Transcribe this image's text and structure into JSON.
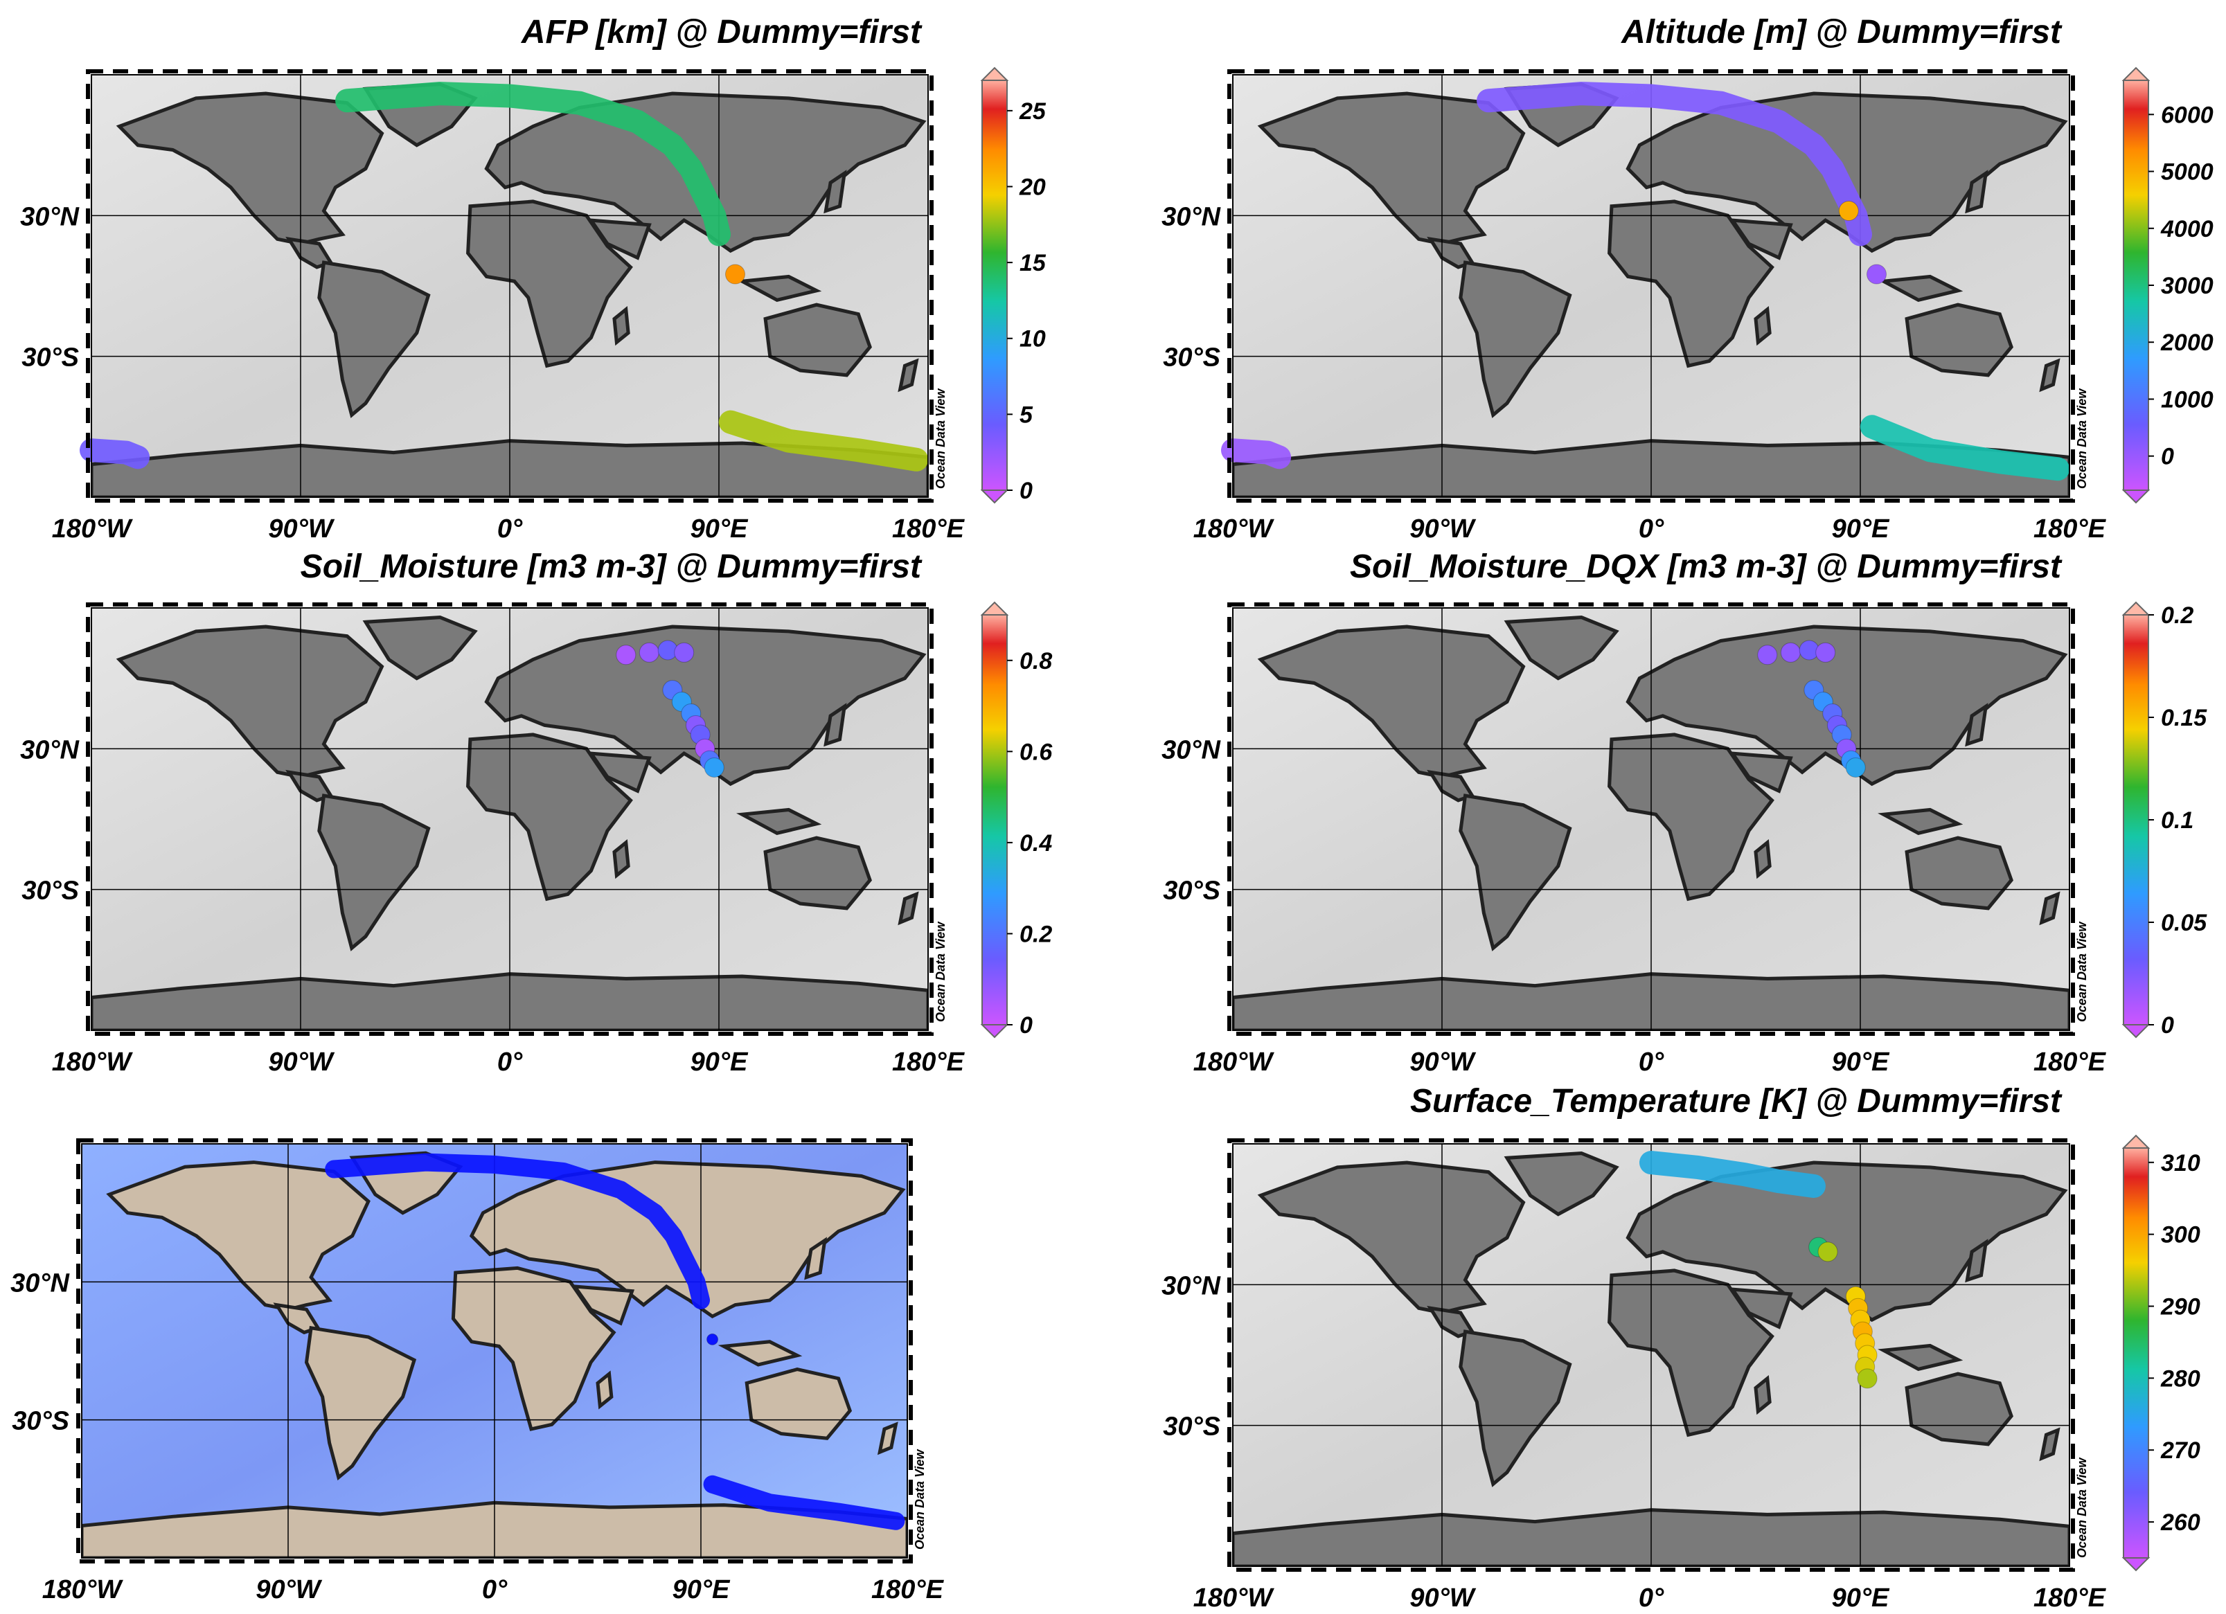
{
  "chart_data": [
    {
      "type": "scatter",
      "title": "AFP [km] @ Dummy=first",
      "x_ticks": [
        "180°W",
        "90°W",
        "0°",
        "90°E",
        "180°E"
      ],
      "y_ticks": [
        "30°N",
        "30°S"
      ],
      "colorbar": {
        "ticks": [
          "0",
          "5",
          "10",
          "15",
          "20",
          "25"
        ],
        "tick_values": [
          0,
          5,
          10,
          15,
          20,
          25
        ],
        "range": [
          0,
          27
        ]
      },
      "watermark": "Ocean Data View",
      "tracks": [
        {
          "points": [
            [
              -70,
              79
            ],
            [
              -30,
              82
            ],
            [
              0,
              81
            ],
            [
              30,
              78
            ],
            [
              55,
              70
            ],
            [
              70,
              60
            ],
            [
              78,
              50
            ],
            [
              83,
              40
            ],
            [
              88,
              30
            ],
            [
              90,
              22
            ]
          ],
          "value": 14
        },
        {
          "points": [
            [
              95,
              -58
            ],
            [
              120,
              -66
            ],
            [
              150,
              -70
            ],
            [
              175,
              -74
            ]
          ],
          "value": 18
        },
        {
          "points": [
            [
              -180,
              -70
            ],
            [
              -165,
              -71
            ],
            [
              -160,
              -73
            ]
          ],
          "value": 4
        }
      ],
      "points": [
        {
          "lon": 97,
          "lat": 5,
          "value": 22
        }
      ]
    },
    {
      "type": "scatter",
      "title": "Altitude [m] @ Dummy=first",
      "x_ticks": [
        "180°W",
        "90°W",
        "0°",
        "90°E",
        "180°E"
      ],
      "y_ticks": [
        "30°N",
        "30°S"
      ],
      "colorbar": {
        "ticks": [
          "0",
          "1000",
          "2000",
          "3000",
          "4000",
          "5000",
          "6000"
        ],
        "tick_values": [
          0,
          1000,
          2000,
          3000,
          4000,
          5000,
          6000
        ],
        "range": [
          -600,
          6600
        ]
      },
      "watermark": "Ocean Data View",
      "tracks": [
        {
          "points": [
            [
              -70,
              79
            ],
            [
              -30,
              82
            ],
            [
              0,
              81
            ],
            [
              30,
              78
            ],
            [
              55,
              70
            ],
            [
              70,
              60
            ],
            [
              78,
              50
            ],
            [
              83,
              40
            ],
            [
              88,
              30
            ],
            [
              90,
              22
            ]
          ],
          "value": 300
        },
        {
          "points": [
            [
              95,
              -60
            ],
            [
              120,
              -70
            ],
            [
              150,
              -75
            ],
            [
              175,
              -78
            ]
          ],
          "value": 2600
        },
        {
          "points": [
            [
              -180,
              -70
            ],
            [
              -165,
              -71
            ],
            [
              -160,
              -73
            ]
          ],
          "value": 0
        }
      ],
      "points": [
        {
          "lon": 97,
          "lat": 5,
          "value": 0
        },
        {
          "lon": 85,
          "lat": 32,
          "value": 5000
        }
      ]
    },
    {
      "type": "scatter",
      "title": "Soil_Moisture [m3 m-3] @ Dummy=first",
      "x_ticks": [
        "180°W",
        "90°W",
        "0°",
        "90°E",
        "180°E"
      ],
      "y_ticks": [
        "30°N",
        "30°S"
      ],
      "colorbar": {
        "ticks": [
          "0",
          "0.2",
          "0.4",
          "0.6",
          "0.8"
        ],
        "tick_values": [
          0,
          0.2,
          0.4,
          0.6,
          0.8
        ],
        "range": [
          0,
          0.9
        ]
      },
      "watermark": "Ocean Data View",
      "points": [
        {
          "lon": 50,
          "lat": 70,
          "value": 0.05
        },
        {
          "lon": 60,
          "lat": 71,
          "value": 0.08
        },
        {
          "lon": 68,
          "lat": 72,
          "value": 0.15
        },
        {
          "lon": 75,
          "lat": 71,
          "value": 0.1
        },
        {
          "lon": 70,
          "lat": 55,
          "value": 0.2
        },
        {
          "lon": 74,
          "lat": 50,
          "value": 0.3
        },
        {
          "lon": 78,
          "lat": 45,
          "value": 0.25
        },
        {
          "lon": 80,
          "lat": 40,
          "value": 0.1
        },
        {
          "lon": 82,
          "lat": 36,
          "value": 0.15
        },
        {
          "lon": 84,
          "lat": 30,
          "value": 0.05
        },
        {
          "lon": 86,
          "lat": 25,
          "value": 0.2
        },
        {
          "lon": 88,
          "lat": 22,
          "value": 0.3
        }
      ]
    },
    {
      "type": "scatter",
      "title": "Soil_Moisture_DQX [m3 m-3] @ Dummy=first",
      "x_ticks": [
        "180°W",
        "90°W",
        "0°",
        "90°E",
        "180°E"
      ],
      "y_ticks": [
        "30°N",
        "30°S"
      ],
      "colorbar": {
        "ticks": [
          "0",
          "0.05",
          "0.1",
          "0.15",
          "0.2"
        ],
        "tick_values": [
          0,
          0.05,
          0.1,
          0.15,
          0.2
        ],
        "range": [
          0,
          0.2
        ]
      },
      "watermark": "Ocean Data View",
      "points": [
        {
          "lon": 50,
          "lat": 70,
          "value": 0.02
        },
        {
          "lon": 60,
          "lat": 71,
          "value": 0.02
        },
        {
          "lon": 68,
          "lat": 72,
          "value": 0.03
        },
        {
          "lon": 75,
          "lat": 71,
          "value": 0.02
        },
        {
          "lon": 70,
          "lat": 55,
          "value": 0.05
        },
        {
          "lon": 74,
          "lat": 50,
          "value": 0.06
        },
        {
          "lon": 78,
          "lat": 45,
          "value": 0.04
        },
        {
          "lon": 80,
          "lat": 40,
          "value": 0.03
        },
        {
          "lon": 82,
          "lat": 36,
          "value": 0.05
        },
        {
          "lon": 84,
          "lat": 30,
          "value": 0.02
        },
        {
          "lon": 86,
          "lat": 25,
          "value": 0.06
        },
        {
          "lon": 88,
          "lat": 22,
          "value": 0.07
        }
      ]
    },
    {
      "type": "scatter",
      "title": "",
      "x_ticks": [
        "180°W",
        "90°W",
        "0°",
        "90°E",
        "180°E"
      ],
      "y_ticks": [
        "30°N",
        "30°S"
      ],
      "watermark": "Ocean Data View",
      "tracks": [
        {
          "points": [
            [
              -70,
              79
            ],
            [
              -30,
              82
            ],
            [
              0,
              81
            ],
            [
              30,
              78
            ],
            [
              55,
              70
            ],
            [
              70,
              60
            ],
            [
              78,
              50
            ],
            [
              83,
              40
            ],
            [
              88,
              30
            ],
            [
              90,
              22
            ]
          ]
        },
        {
          "points": [
            [
              95,
              -58
            ],
            [
              120,
              -66
            ],
            [
              150,
              -70
            ],
            [
              175,
              -74
            ]
          ]
        }
      ],
      "points": [
        {
          "lon": 95,
          "lat": 5
        }
      ]
    },
    {
      "type": "scatter",
      "title": "Surface_Temperature [K] @ Dummy=first",
      "x_ticks": [
        "180°W",
        "90°W",
        "0°",
        "90°E",
        "180°E"
      ],
      "y_ticks": [
        "30°N",
        "30°S"
      ],
      "colorbar": {
        "ticks": [
          "260",
          "270",
          "280",
          "290",
          "300",
          "310"
        ],
        "tick_values": [
          260,
          270,
          280,
          290,
          300,
          310
        ],
        "range": [
          255,
          312
        ]
      },
      "watermark": "Ocean Data View",
      "tracks": [
        {
          "points": [
            [
              0,
              82
            ],
            [
              20,
              80
            ],
            [
              40,
              77
            ],
            [
              55,
              74
            ],
            [
              70,
              72
            ]
          ],
          "value": 276
        }
      ],
      "points": [
        {
          "lon": 72,
          "lat": 46,
          "value": 284
        },
        {
          "lon": 76,
          "lat": 44,
          "value": 293
        },
        {
          "lon": 88,
          "lat": 25,
          "value": 296
        },
        {
          "lon": 89,
          "lat": 20,
          "value": 298
        },
        {
          "lon": 90,
          "lat": 15,
          "value": 297
        },
        {
          "lon": 91,
          "lat": 10,
          "value": 299
        },
        {
          "lon": 92,
          "lat": 5,
          "value": 297
        },
        {
          "lon": 93,
          "lat": 0,
          "value": 296
        },
        {
          "lon": 92,
          "lat": -5,
          "value": 295
        },
        {
          "lon": 93,
          "lat": -10,
          "value": 293
        }
      ]
    }
  ]
}
